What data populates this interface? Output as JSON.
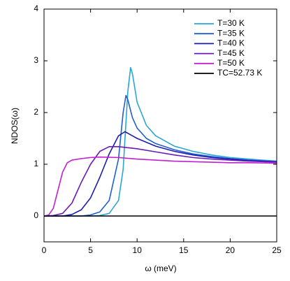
{
  "chart_data": {
    "type": "line",
    "xlabel": "ω (meV)",
    "ylabel": "NDOS(ω)",
    "xlim": [
      0,
      25
    ],
    "xticks": [
      0,
      5,
      10,
      15,
      20,
      25
    ],
    "ylim": [
      -0.5,
      4
    ],
    "yticks": [
      0,
      1,
      2,
      3,
      4
    ],
    "legend": "upper right",
    "series": [
      {
        "name": "T=30 K",
        "color": "#2aa6d4",
        "x": [
          0,
          5,
          6,
          7,
          8,
          8.5,
          9,
          9.3,
          9.5,
          10,
          11,
          12,
          14,
          16,
          18,
          20,
          22,
          25
        ],
        "values": [
          0,
          0,
          0.01,
          0.05,
          0.3,
          0.9,
          2.4,
          2.87,
          2.75,
          2.2,
          1.75,
          1.55,
          1.35,
          1.25,
          1.18,
          1.13,
          1.1,
          1.06
        ]
      },
      {
        "name": "T=35 K",
        "color": "#1f5fd0",
        "x": [
          0,
          4,
          5,
          6,
          7,
          8,
          8.5,
          8.8,
          9,
          9.5,
          10,
          11,
          12,
          14,
          16,
          18,
          20,
          22,
          25
        ],
        "values": [
          0,
          0,
          0.02,
          0.08,
          0.3,
          1.1,
          2.0,
          2.33,
          2.25,
          1.9,
          1.7,
          1.5,
          1.4,
          1.28,
          1.2,
          1.15,
          1.11,
          1.08,
          1.05
        ]
      },
      {
        "name": "T=40 K",
        "color": "#1c1cb0",
        "x": [
          0,
          2,
          3,
          4,
          5,
          6,
          7,
          8,
          8.7,
          9.5,
          10,
          12,
          14,
          16,
          18,
          20,
          22,
          25
        ],
        "values": [
          0,
          0,
          0.03,
          0.12,
          0.35,
          0.75,
          1.2,
          1.55,
          1.63,
          1.55,
          1.5,
          1.35,
          1.25,
          1.18,
          1.13,
          1.1,
          1.07,
          1.05
        ]
      },
      {
        "name": "T=45 K",
        "color": "#6a1ab8",
        "x": [
          0,
          1,
          2,
          3,
          4,
          5,
          6,
          7,
          8,
          10,
          12,
          14,
          16,
          18,
          20,
          22,
          25
        ],
        "values": [
          0,
          0.01,
          0.05,
          0.25,
          0.65,
          1.0,
          1.25,
          1.34,
          1.34,
          1.3,
          1.24,
          1.18,
          1.13,
          1.1,
          1.08,
          1.06,
          1.04
        ]
      },
      {
        "name": "T=50 K",
        "color": "#c020d0",
        "x": [
          0,
          0.5,
          1,
          1.5,
          2,
          2.5,
          3,
          4,
          5,
          6,
          8,
          10,
          12,
          14,
          16,
          18,
          20,
          22,
          25
        ],
        "values": [
          0,
          0.02,
          0.15,
          0.5,
          0.85,
          1.03,
          1.08,
          1.11,
          1.13,
          1.14,
          1.13,
          1.1,
          1.08,
          1.06,
          1.05,
          1.04,
          1.03,
          1.03,
          1.02
        ]
      },
      {
        "name": "TC=52.73 K",
        "color": "#000000",
        "x": [
          0,
          25
        ],
        "values": [
          0,
          0
        ]
      }
    ]
  }
}
